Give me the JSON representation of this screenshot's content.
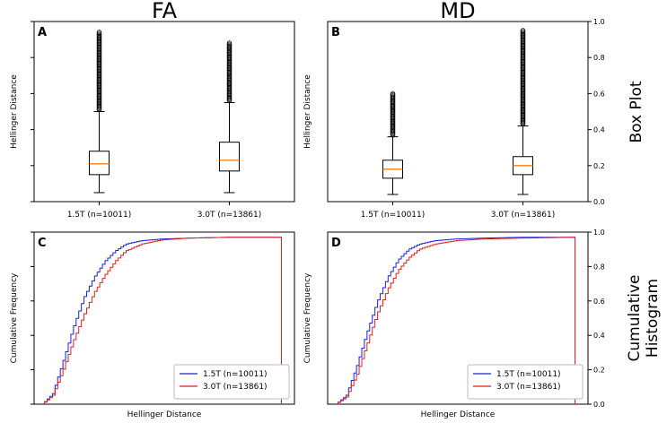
{
  "figure": {
    "col_titles": [
      "FA",
      "MD"
    ],
    "row_titles": [
      "Box Plot",
      "Cumulative Histogram"
    ],
    "row_title_lines": [
      [
        "Box Plot"
      ],
      [
        "Cumulative",
        "Histogram"
      ]
    ]
  },
  "chart_data": [
    {
      "panel": "A",
      "type": "box",
      "column": "FA",
      "ylabel": "Hellinger Distance",
      "ylim": [
        0.0,
        1.0
      ],
      "categories": [
        "1.5T (n=10011)",
        "3.0T (n=13861)"
      ],
      "boxes": [
        {
          "whisker_low": 0.05,
          "q1": 0.15,
          "median": 0.21,
          "q3": 0.28,
          "whisker_high": 0.5,
          "outlier_max": 0.94
        },
        {
          "whisker_low": 0.05,
          "q1": 0.17,
          "median": 0.23,
          "q3": 0.33,
          "whisker_high": 0.55,
          "outlier_max": 0.88
        }
      ]
    },
    {
      "panel": "B",
      "type": "box",
      "column": "MD",
      "ylabel": "Hellinger Distance",
      "ylim": [
        0.0,
        1.0
      ],
      "yticks": [
        "0.0",
        "0.2",
        "0.4",
        "0.6",
        "0.8",
        "1.0"
      ],
      "categories": [
        "1.5T (n=10011)",
        "3.0T (n=13861)"
      ],
      "boxes": [
        {
          "whisker_low": 0.04,
          "q1": 0.13,
          "median": 0.18,
          "q3": 0.23,
          "whisker_high": 0.36,
          "outlier_max": 0.6
        },
        {
          "whisker_low": 0.04,
          "q1": 0.15,
          "median": 0.2,
          "q3": 0.25,
          "whisker_high": 0.42,
          "outlier_max": 0.95
        }
      ]
    },
    {
      "panel": "C",
      "type": "line",
      "column": "FA",
      "xlabel": "Hellinger Distance",
      "ylabel": "Cumulative Frequency",
      "xlim": [
        0.0,
        1.0
      ],
      "ylim": [
        0.0,
        1.0
      ],
      "legend": "lower-right",
      "series": [
        {
          "name": "1.5T (n=10011)",
          "color": "#1f1fe0",
          "x": [
            0.04,
            0.08,
            0.12,
            0.16,
            0.2,
            0.24,
            0.28,
            0.32,
            0.36,
            0.42,
            0.5,
            0.6,
            0.75,
            0.95
          ],
          "y": [
            0.0,
            0.06,
            0.25,
            0.45,
            0.62,
            0.74,
            0.83,
            0.89,
            0.93,
            0.95,
            0.96,
            0.965,
            0.97,
            0.97
          ]
        },
        {
          "name": "3.0T (n=13861)",
          "color": "#e01f1f",
          "x": [
            0.04,
            0.08,
            0.12,
            0.16,
            0.2,
            0.24,
            0.28,
            0.32,
            0.36,
            0.42,
            0.5,
            0.6,
            0.75,
            0.95
          ],
          "y": [
            0.0,
            0.05,
            0.2,
            0.37,
            0.52,
            0.65,
            0.75,
            0.83,
            0.89,
            0.93,
            0.955,
            0.965,
            0.97,
            0.97
          ]
        }
      ]
    },
    {
      "panel": "D",
      "type": "line",
      "column": "MD",
      "xlabel": "Hellinger Distance",
      "ylabel": "Cumulative Frequency",
      "xlim": [
        0.0,
        1.0
      ],
      "ylim": [
        0.0,
        1.0
      ],
      "yticks": [
        "0.0",
        "0.2",
        "0.4",
        "0.6",
        "0.8",
        "1.0"
      ],
      "legend": "lower-right",
      "series": [
        {
          "name": "1.5T (n=10011)",
          "color": "#1f1fe0",
          "x": [
            0.04,
            0.08,
            0.12,
            0.16,
            0.2,
            0.24,
            0.28,
            0.32,
            0.36,
            0.42,
            0.5,
            0.6,
            0.75,
            0.95
          ],
          "y": [
            0.0,
            0.05,
            0.22,
            0.42,
            0.6,
            0.74,
            0.84,
            0.9,
            0.93,
            0.95,
            0.96,
            0.965,
            0.97,
            0.97
          ]
        },
        {
          "name": "3.0T (n=13861)",
          "color": "#e01f1f",
          "x": [
            0.04,
            0.08,
            0.12,
            0.16,
            0.2,
            0.24,
            0.28,
            0.32,
            0.36,
            0.42,
            0.5,
            0.6,
            0.75,
            0.95
          ],
          "y": [
            0.0,
            0.04,
            0.17,
            0.35,
            0.53,
            0.67,
            0.78,
            0.85,
            0.9,
            0.93,
            0.95,
            0.96,
            0.965,
            0.97
          ]
        }
      ]
    }
  ]
}
